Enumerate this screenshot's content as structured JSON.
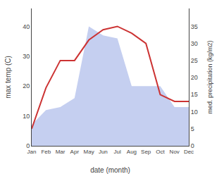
{
  "chart_data": {
    "type": "area",
    "xlabel": "date (month)",
    "ylabel": "max temp (C)",
    "y2label": "med. precipitation (kg/m2)",
    "categories": [
      "Jan",
      "Feb",
      "Mar",
      "Apr",
      "May",
      "Jun",
      "Jul",
      "Aug",
      "Sep",
      "Oct",
      "Nov",
      "Dec"
    ],
    "series": [
      {
        "type": "area",
        "color": "#c5cff0",
        "values": [
          7,
          12,
          13,
          16,
          40,
          37,
          36,
          20,
          20,
          20,
          13,
          13
        ]
      },
      {
        "type": "line",
        "axis": "y2",
        "color": "#cc3333",
        "values": [
          5,
          17,
          25,
          25,
          31,
          34,
          35,
          33,
          30,
          15,
          13,
          13
        ]
      }
    ],
    "ylim": [
      0,
      46
    ],
    "yticks": [
      0,
      10,
      20,
      30,
      40
    ],
    "y2lim": [
      0,
      40.25
    ],
    "y2ticks": [
      0,
      5,
      10,
      15,
      20,
      25,
      30,
      35
    ],
    "grid": false
  }
}
